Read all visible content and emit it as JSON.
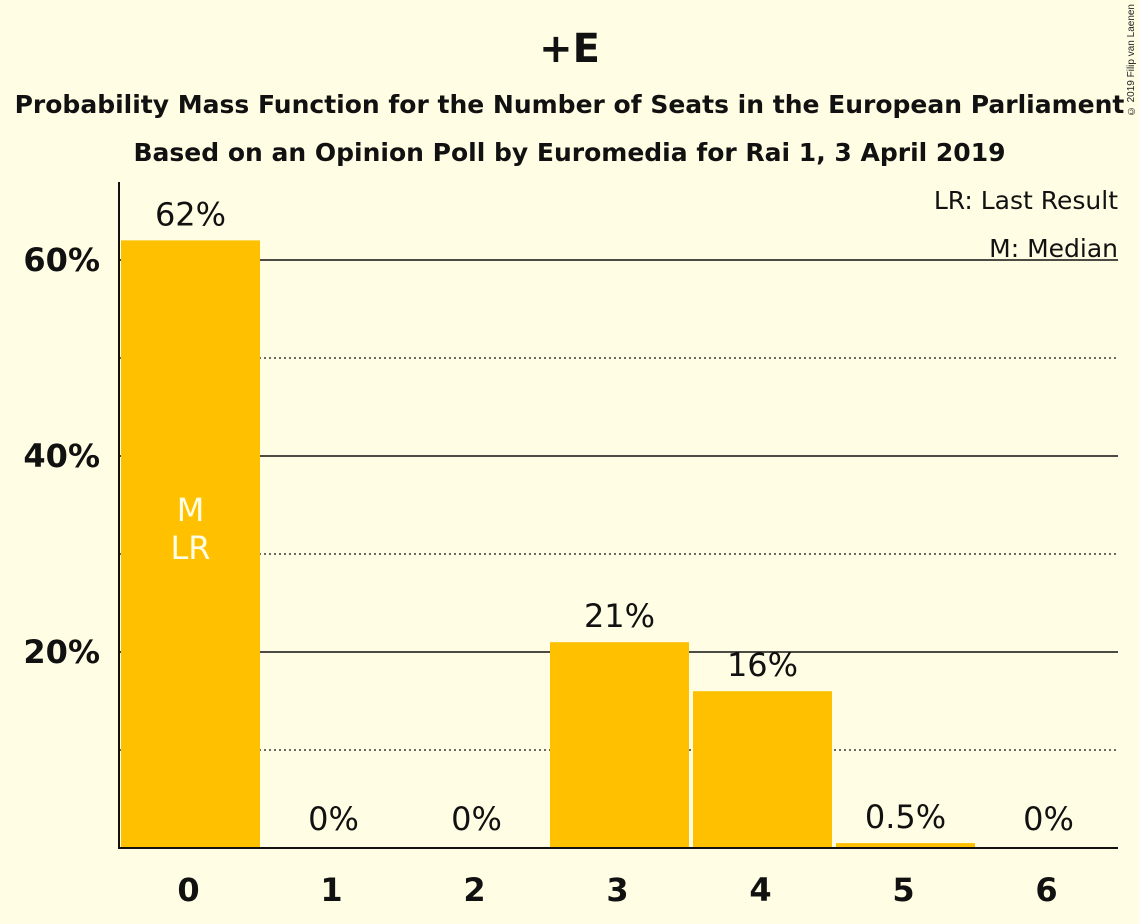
{
  "title": "+E",
  "subtitle_line1": "Probability Mass Function for the Number of Seats in the European Parliament",
  "subtitle_line2": "Based on an Opinion Poll by Euromedia for Rai 1, 3 April 2019",
  "copyright": "© 2019 Filip van Laenen",
  "legend": {
    "last_result": "LR: Last Result",
    "median": "M: Median"
  },
  "colors": {
    "background": "#fffde3",
    "bar": "#ffc000",
    "bar_label_inside": "#fffde3",
    "text": "#111111"
  },
  "chart_data": {
    "type": "bar",
    "categories": [
      "0",
      "1",
      "2",
      "3",
      "4",
      "5",
      "6"
    ],
    "values": [
      62,
      0,
      0,
      21,
      16,
      0.5,
      0
    ],
    "value_labels": [
      "62%",
      "0%",
      "0%",
      "21%",
      "16%",
      "0.5%",
      "0%"
    ],
    "bar_annotations": [
      [
        "M",
        "LR"
      ],
      [],
      [],
      [],
      [],
      [],
      []
    ],
    "ylim": [
      0,
      68
    ],
    "ytick_values": [
      20,
      40,
      60
    ],
    "ytick_labels": [
      "20%",
      "40%",
      "60%"
    ],
    "minor_gridlines": [
      10,
      30,
      50
    ],
    "major_gridlines": [
      20,
      40,
      60
    ],
    "legend_position": "top-right"
  }
}
